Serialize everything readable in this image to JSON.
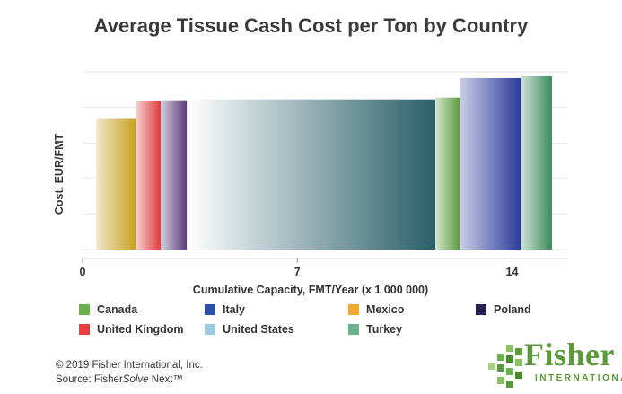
{
  "chart_data": {
    "type": "bar",
    "title": "Average Tissue Cash Cost per Ton by Country",
    "xlabel": "Cumulative Capacity, FMT/Year (x 1 000 000)",
    "ylabel": "Cost, EUR/FMT",
    "x_ticks": [
      "0",
      "7",
      "14"
    ],
    "xlim": [
      0,
      15.8
    ],
    "ylim": [
      0,
      100
    ],
    "grid": true,
    "legend_position": "bottom",
    "bars": [
      {
        "name": "Mexico",
        "x_start": 0.45,
        "x_end": 1.75,
        "value": 73.5,
        "color": "#c8a020"
      },
      {
        "name": "United Kingdom",
        "x_start": 1.75,
        "x_end": 2.55,
        "value": 83.5,
        "color": "#e03a3a"
      },
      {
        "name": "Poland",
        "x_start": 2.55,
        "x_end": 3.4,
        "value": 84.0,
        "color": "#5a3a7a"
      },
      {
        "name": "United States",
        "x_start": 3.4,
        "x_end": 11.5,
        "value": 84.5,
        "color": "#2a5f6a"
      },
      {
        "name": "Canada",
        "x_start": 11.5,
        "x_end": 12.3,
        "value": 85.5,
        "color": "#5a9a3a"
      },
      {
        "name": "Italy",
        "x_start": 12.3,
        "x_end": 14.3,
        "value": 96.5,
        "color": "#2a3a9a"
      },
      {
        "name": "Turkey",
        "x_start": 14.3,
        "x_end": 15.3,
        "value": 97.5,
        "color": "#3a8a5a"
      }
    ]
  },
  "legend": [
    {
      "label": "Canada",
      "color": "#6ab04c"
    },
    {
      "label": "Italy",
      "color": "#2e4fa8"
    },
    {
      "label": "Mexico",
      "color": "#f0a830"
    },
    {
      "label": "Poland",
      "color": "#2a2050"
    },
    {
      "label": "United Kingdom",
      "color": "#e84040"
    },
    {
      "label": "United States",
      "color": "#9ec8e0"
    },
    {
      "label": "Turkey",
      "color": "#6ab08a"
    }
  ],
  "footer": {
    "copyright": "© 2019 Fisher International, Inc.",
    "source_prefix": "Source: Fisher",
    "source_italic": "Solve",
    "source_suffix": " Next™"
  },
  "logo": {
    "name": "Fisher",
    "sub": "INTERNATIONAL"
  }
}
